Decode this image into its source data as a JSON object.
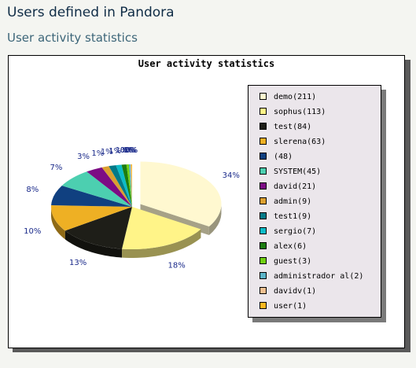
{
  "page": {
    "title": "Users defined in Pandora",
    "section_title": "User activity statistics"
  },
  "chart_data": {
    "type": "pie",
    "title": "User activity statistics",
    "categories": [
      "demo",
      "sophus",
      "test",
      "slerena",
      "",
      "SYSTEM",
      "david",
      "admin",
      "test1",
      "sergio",
      "alex",
      "guest",
      "administrador al",
      "davidv",
      "user"
    ],
    "values": [
      211,
      113,
      84,
      63,
      48,
      45,
      21,
      9,
      9,
      7,
      6,
      3,
      2,
      1,
      1
    ],
    "legend_labels": [
      "demo(211)",
      "sophus(113)",
      "test(84)",
      "slerena(63)",
      "(48)",
      "SYSTEM(45)",
      "david(21)",
      "admin(9)",
      "test1(9)",
      "sergio(7)",
      "alex(6)",
      "guest(3)",
      "administrador al(2)",
      "davidv(1)",
      "user(1)"
    ],
    "colors": [
      "#fff8d0",
      "#fff488",
      "#1e1e18",
      "#eeb024",
      "#104080",
      "#4ccfb0",
      "#7c0c84",
      "#dca030",
      "#047a88",
      "#0cbcc8",
      "#1c7c10",
      "#70d010",
      "#5cb4c8",
      "#f0c090",
      "#ffb820"
    ],
    "percent_labels": [
      "34%",
      "18%",
      "13%",
      "10%",
      "8%",
      "7%",
      "3%",
      "1%",
      "1%",
      "1%",
      "1%",
      "0%",
      "0%",
      "0%",
      "0%"
    ],
    "exploded_slice": "demo",
    "legend_position": "right"
  }
}
